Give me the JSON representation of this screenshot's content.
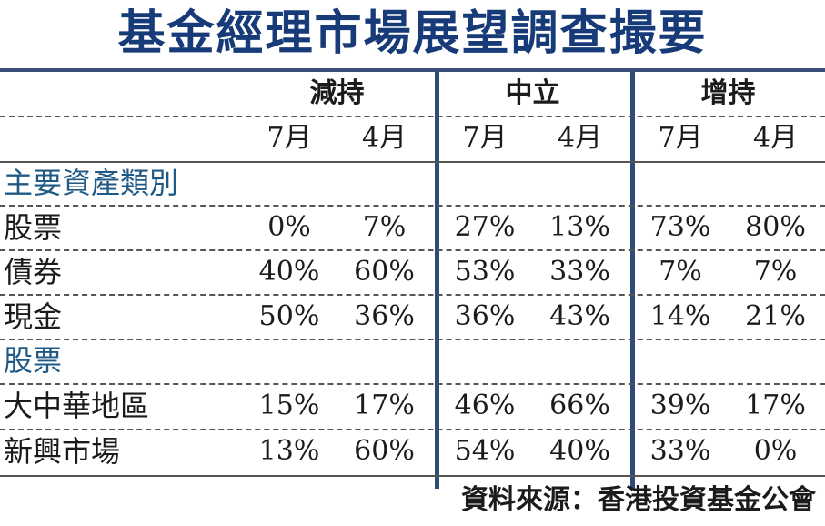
{
  "title": "基金經理市場展望調查撮要",
  "groups": [
    "減持",
    "中立",
    "增持"
  ],
  "months": [
    "7月",
    "4月",
    "7月",
    "4月",
    "7月",
    "4月"
  ],
  "sections": [
    {
      "name": "主要資產類別",
      "rows": [
        {
          "label": "股票",
          "values": [
            "0%",
            "7%",
            "27%",
            "13%",
            "73%",
            "80%"
          ]
        },
        {
          "label": "債券",
          "values": [
            "40%",
            "60%",
            "53%",
            "33%",
            "7%",
            "7%"
          ]
        },
        {
          "label": "現金",
          "values": [
            "50%",
            "36%",
            "36%",
            "43%",
            "14%",
            "21%"
          ]
        }
      ]
    },
    {
      "name": "股票",
      "rows": [
        {
          "label": "大中華地區",
          "values": [
            "15%",
            "17%",
            "46%",
            "66%",
            "39%",
            "17%"
          ]
        },
        {
          "label": "新興市場",
          "values": [
            "13%",
            "60%",
            "54%",
            "40%",
            "33%",
            "0%"
          ]
        }
      ]
    }
  ],
  "source": "資料來源：香港投資基金公會",
  "colors": {
    "title": "#173a78",
    "section": "#1f5a86",
    "divider": "#2e4b7a"
  }
}
